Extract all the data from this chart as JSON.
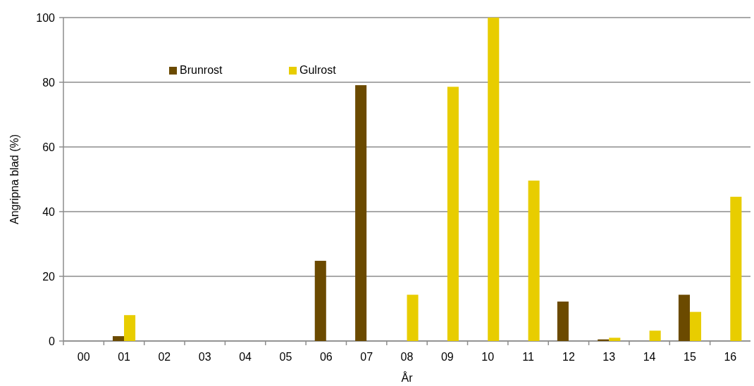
{
  "chart_data": {
    "type": "bar",
    "xlabel": "År",
    "ylabel": "Angripna blad (%)",
    "categories": [
      "00",
      "01",
      "02",
      "03",
      "04",
      "05",
      "06",
      "07",
      "08",
      "09",
      "10",
      "11",
      "12",
      "13",
      "14",
      "15",
      "16"
    ],
    "series": [
      {
        "name": "Brunrost",
        "color": "#6b4a00",
        "values": [
          0,
          1.5,
          0,
          0,
          0,
          0,
          24.8,
          79.1,
          0,
          0,
          0,
          0,
          12.2,
          0.5,
          0,
          14.3,
          0
        ]
      },
      {
        "name": "Gulrost",
        "color": "#e8cd00",
        "values": [
          0,
          8,
          0,
          0,
          0,
          0,
          0,
          0,
          14.3,
          78.6,
          100,
          49.6,
          0,
          1,
          3.2,
          9,
          44.6
        ]
      }
    ],
    "ylim": [
      0,
      100
    ],
    "yticks": [
      0,
      20,
      40,
      60,
      80,
      100
    ],
    "grid": "y",
    "legend": "top left"
  }
}
